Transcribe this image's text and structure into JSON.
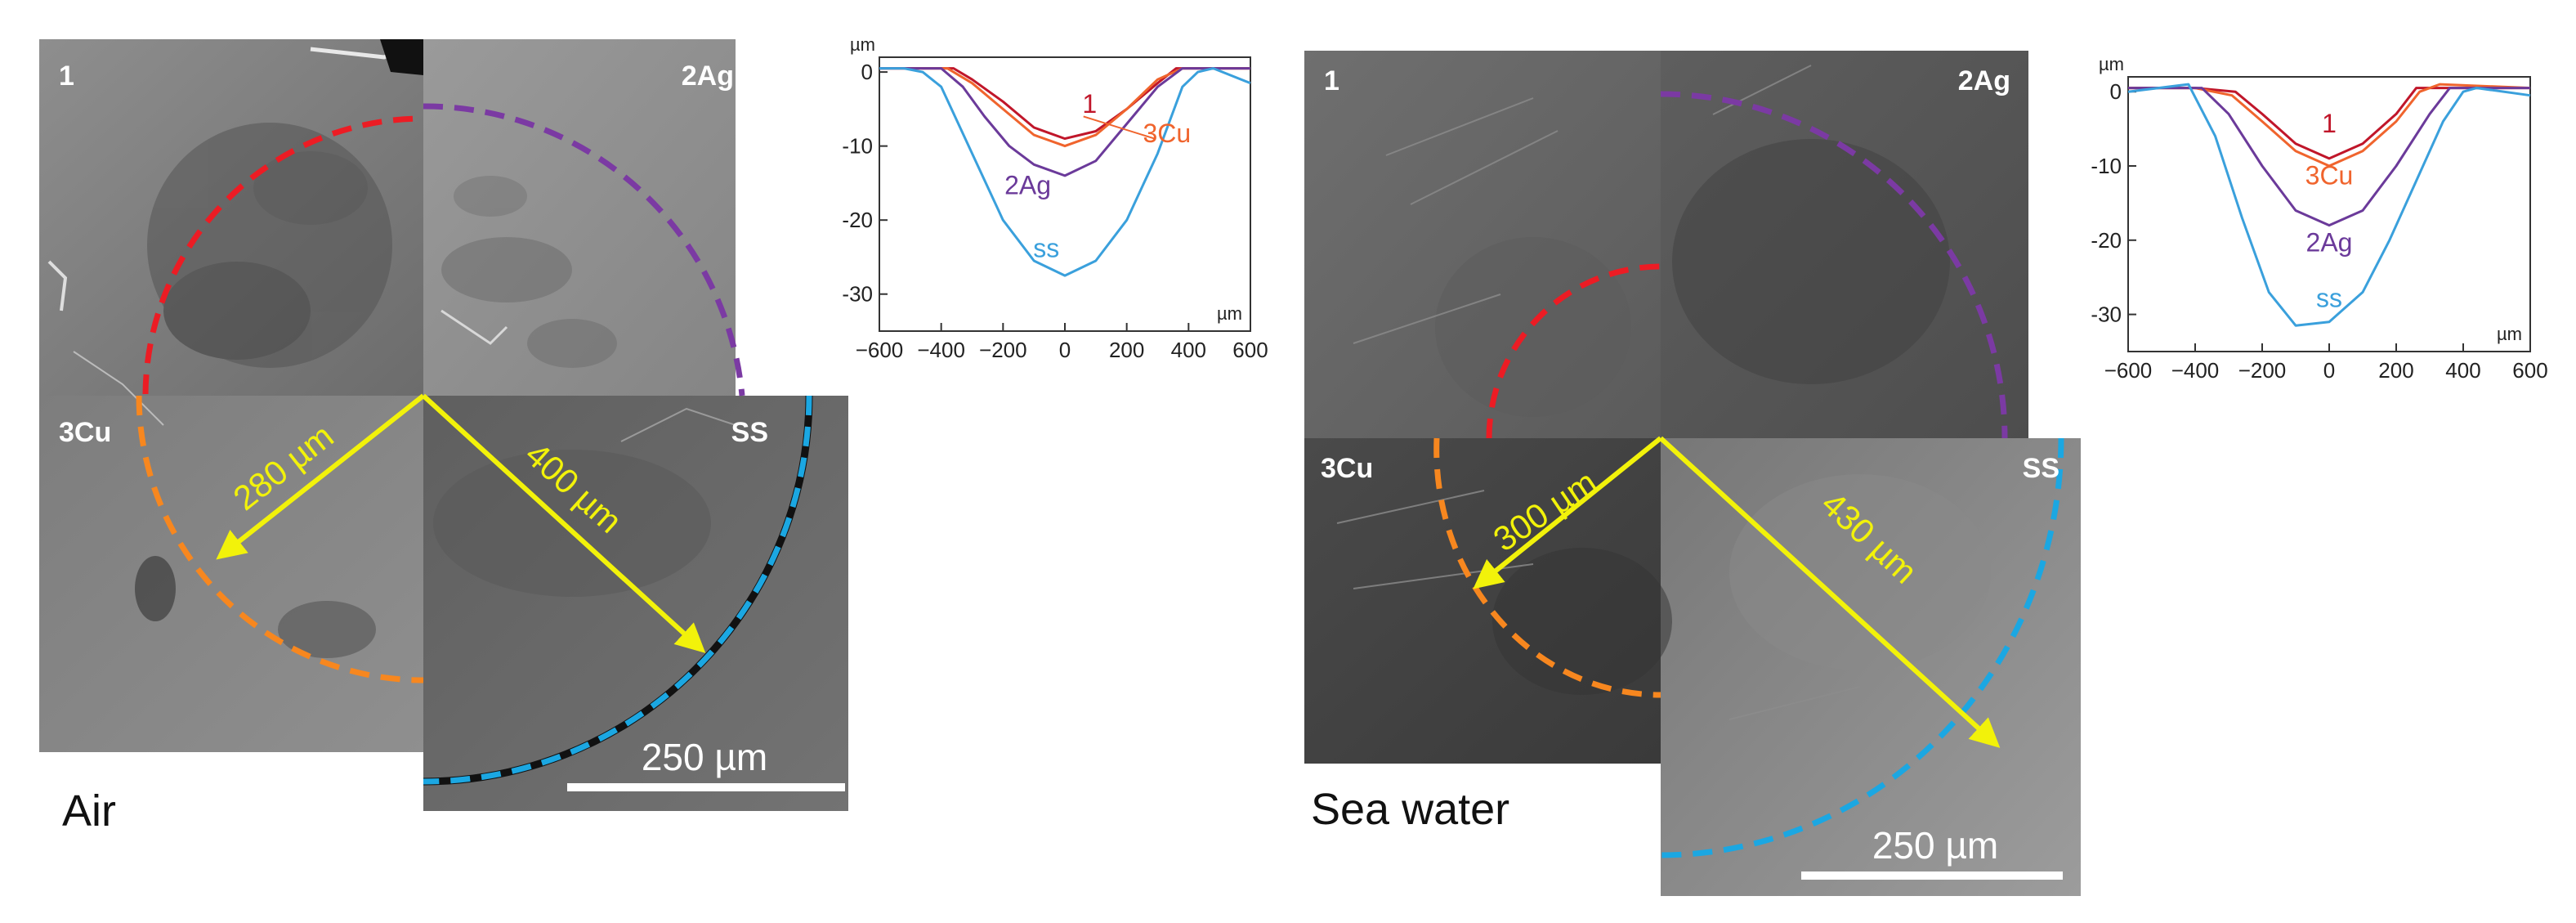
{
  "panels": [
    {
      "condition": "Air",
      "quadrants": [
        "1",
        "2Ag",
        "3Cu",
        "SS"
      ],
      "arrows": [
        "280 µm",
        "400 µm"
      ],
      "scale_bar": "250 µm",
      "chart_data": {
        "type": "line",
        "ylabel": "µm",
        "xlabel": "µm",
        "xlim": [
          -600,
          600
        ],
        "ylim": [
          -35,
          2
        ],
        "x_ticks": [
          -600,
          -400,
          -200,
          0,
          200,
          400,
          600
        ],
        "y_ticks": [
          0,
          -10,
          -20,
          -30
        ],
        "series": [
          {
            "name": "1",
            "color": "#c0162a",
            "x": [
              -600,
              -360,
              -300,
              -200,
              -100,
              0,
              100,
              200,
              300,
              360,
              420,
              600
            ],
            "y": [
              0.5,
              0.5,
              -1,
              -4,
              -7.5,
              -9,
              -8,
              -5,
              -1.5,
              0.5,
              0.5,
              0.5
            ]
          },
          {
            "name": "3Cu",
            "color": "#f0642d",
            "x": [
              -600,
              -380,
              -300,
              -200,
              -100,
              0,
              100,
              200,
              300,
              380,
              440,
              600
            ],
            "y": [
              0.5,
              0.5,
              -1.5,
              -5,
              -8.5,
              -10,
              -8.5,
              -5,
              -1,
              0.5,
              0.5,
              0.5
            ]
          },
          {
            "name": "2Ag",
            "color": "#6b3a9a",
            "x": [
              -600,
              -400,
              -330,
              -260,
              -180,
              -100,
              0,
              100,
              200,
              300,
              380,
              600
            ],
            "y": [
              0.5,
              0.5,
              -2,
              -6,
              -10,
              -12.5,
              -14,
              -12,
              -7,
              -2,
              0.5,
              0.5
            ]
          },
          {
            "name": "SS",
            "color": "#3aa0dc",
            "x": [
              -600,
              -520,
              -460,
              -400,
              -300,
              -200,
              -100,
              0,
              100,
              200,
              300,
              380,
              430,
              480,
              600
            ],
            "y": [
              0.5,
              0.5,
              0,
              -2,
              -11,
              -20,
              -25.5,
              -27.5,
              -25.5,
              -20,
              -11,
              -2,
              0,
              0.5,
              -1.5
            ]
          }
        ]
      }
    },
    {
      "condition": "Sea water",
      "quadrants": [
        "1",
        "2Ag",
        "3Cu",
        "SS"
      ],
      "arrows": [
        "300 µm",
        "430 µm"
      ],
      "scale_bar": "250 µm",
      "chart_data": {
        "type": "line",
        "ylabel": "µm",
        "xlabel": "µm",
        "xlim": [
          -600,
          600
        ],
        "ylim": [
          -35,
          2
        ],
        "x_ticks": [
          -600,
          -400,
          -200,
          0,
          200,
          400,
          600
        ],
        "y_ticks": [
          0,
          -10,
          -20,
          -30
        ],
        "series": [
          {
            "name": "1",
            "color": "#c0162a",
            "x": [
              -600,
              -400,
              -280,
              -200,
              -100,
              0,
              100,
              200,
              260,
              320,
              600
            ],
            "y": [
              0.5,
              0.5,
              0,
              -3,
              -7,
              -9,
              -7,
              -3,
              0.5,
              0.5,
              0.5
            ]
          },
          {
            "name": "3Cu",
            "color": "#f0642d",
            "x": [
              -600,
              -400,
              -290,
              -200,
              -100,
              0,
              100,
              200,
              270,
              330,
              600
            ],
            "y": [
              0.5,
              0.5,
              -0.5,
              -4,
              -8,
              -10,
              -8,
              -4,
              0,
              1,
              0.5
            ]
          },
          {
            "name": "2Ag",
            "color": "#6b3a9a",
            "x": [
              -600,
              -380,
              -300,
              -200,
              -100,
              0,
              100,
              200,
              300,
              360,
              600
            ],
            "y": [
              0.5,
              0.5,
              -3,
              -10,
              -16,
              -18,
              -16,
              -10,
              -3,
              0.5,
              0.5
            ]
          },
          {
            "name": "SS",
            "color": "#3aa0dc",
            "x": [
              -600,
              -420,
              -340,
              -260,
              -180,
              -100,
              0,
              100,
              180,
              260,
              340,
              400,
              440,
              600
            ],
            "y": [
              0,
              1,
              -6,
              -17,
              -27,
              -31.5,
              -31,
              -27,
              -20,
              -12,
              -4,
              0,
              0.5,
              -0.5
            ]
          }
        ]
      }
    }
  ]
}
